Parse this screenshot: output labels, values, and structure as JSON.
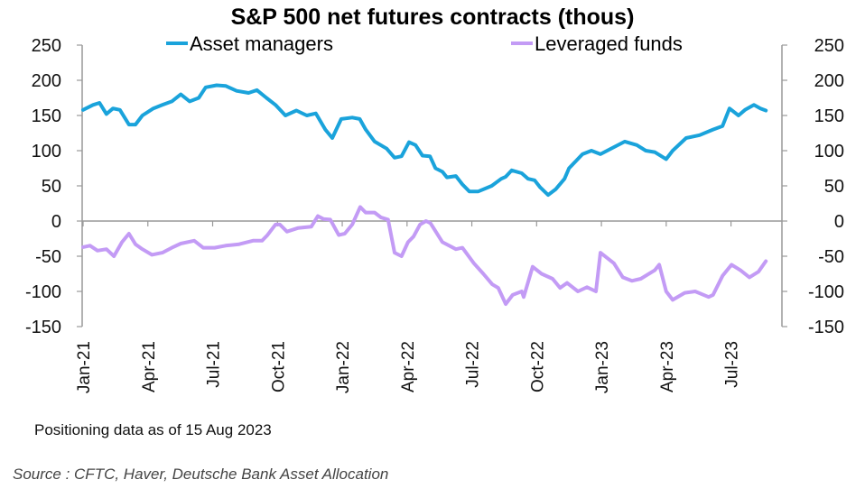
{
  "chart_data": {
    "type": "line",
    "title": "S&P 500 net futures contracts  (thous)",
    "xlabel": "",
    "ylabel": "",
    "ylim": [
      -150,
      250
    ],
    "yticks": [
      250,
      200,
      150,
      100,
      50,
      0,
      -50,
      -100,
      -150
    ],
    "y2ticks": [
      250,
      200,
      150,
      100,
      50,
      0,
      -50,
      -100,
      -150
    ],
    "xlim_weeks": [
      0,
      140
    ],
    "x_unit": "weeks since 1 Jan 2021",
    "xticks": [
      {
        "label": "Jan-21",
        "week": 0
      },
      {
        "label": "Apr-21",
        "week": 13
      },
      {
        "label": "Jul-21",
        "week": 26
      },
      {
        "label": "Oct-21",
        "week": 39
      },
      {
        "label": "Jan-22",
        "week": 52
      },
      {
        "label": "Apr-22",
        "week": 65
      },
      {
        "label": "Jul-22",
        "week": 78
      },
      {
        "label": "Oct-22",
        "week": 91
      },
      {
        "label": "Jan-23",
        "week": 104
      },
      {
        "label": "Apr-23",
        "week": 117
      },
      {
        "label": "Jul-23",
        "week": 130
      }
    ],
    "grid": false,
    "legend_position": "top",
    "series": [
      {
        "name": "Asset managers",
        "color": "#1aa3db",
        "points": [
          [
            0,
            158
          ],
          [
            2,
            165
          ],
          [
            3.3,
            168
          ],
          [
            4.7,
            152
          ],
          [
            6,
            160
          ],
          [
            7.4,
            158
          ],
          [
            9.2,
            137
          ],
          [
            10.5,
            137
          ],
          [
            11.9,
            150
          ],
          [
            14.1,
            160
          ],
          [
            15.9,
            165
          ],
          [
            17.8,
            170
          ],
          [
            19.6,
            180
          ],
          [
            21.4,
            170
          ],
          [
            23.2,
            175
          ],
          [
            24.6,
            190
          ],
          [
            26.8,
            193
          ],
          [
            28.6,
            192
          ],
          [
            30.8,
            185
          ],
          [
            33.2,
            182
          ],
          [
            34.9,
            186
          ],
          [
            36.8,
            175
          ],
          [
            38.6,
            165
          ],
          [
            40.6,
            150
          ],
          [
            42.8,
            157
          ],
          [
            44.9,
            150
          ],
          [
            46.7,
            153
          ],
          [
            48.6,
            130
          ],
          [
            50,
            118
          ],
          [
            51.8,
            145
          ],
          [
            54,
            147
          ],
          [
            55.5,
            145
          ],
          [
            56.7,
            130
          ],
          [
            58.5,
            113
          ],
          [
            60.9,
            103
          ],
          [
            62.5,
            90
          ],
          [
            63.9,
            92
          ],
          [
            65.4,
            112
          ],
          [
            66.7,
            108
          ],
          [
            68.1,
            93
          ],
          [
            69.6,
            92
          ],
          [
            70.7,
            75
          ],
          [
            72.1,
            70
          ],
          [
            73,
            62
          ],
          [
            74.8,
            64
          ],
          [
            76.1,
            52
          ],
          [
            77.5,
            42
          ],
          [
            79.3,
            42
          ],
          [
            82,
            50
          ],
          [
            83.9,
            60
          ],
          [
            84.8,
            63
          ],
          [
            86,
            72
          ],
          [
            88,
            68
          ],
          [
            89.3,
            60
          ],
          [
            90.6,
            58
          ],
          [
            91.7,
            48
          ],
          [
            93.3,
            37
          ],
          [
            94.8,
            45
          ],
          [
            96.6,
            60
          ],
          [
            97.5,
            75
          ],
          [
            100.2,
            95
          ],
          [
            102,
            100
          ],
          [
            103.8,
            95
          ],
          [
            106.5,
            105
          ],
          [
            108.7,
            113
          ],
          [
            111.1,
            108
          ],
          [
            112.9,
            100
          ],
          [
            114.7,
            98
          ],
          [
            117,
            88
          ],
          [
            118.3,
            100
          ],
          [
            121,
            118
          ],
          [
            123.7,
            122
          ],
          [
            126.4,
            130
          ],
          [
            128.3,
            135
          ],
          [
            129.7,
            160
          ],
          [
            131.5,
            150
          ],
          [
            132.8,
            158
          ],
          [
            134.6,
            165
          ],
          [
            135.9,
            160
          ],
          [
            137,
            157
          ]
        ]
      },
      {
        "name": "Leveraged funds",
        "color": "#c39bf5",
        "points": [
          [
            0,
            -37
          ],
          [
            1.4,
            -35
          ],
          [
            2.9,
            -42
          ],
          [
            4.7,
            -40
          ],
          [
            6.2,
            -50
          ],
          [
            7.8,
            -30
          ],
          [
            9.2,
            -18
          ],
          [
            10.5,
            -33
          ],
          [
            11.9,
            -40
          ],
          [
            13.8,
            -48
          ],
          [
            15.9,
            -45
          ],
          [
            17.8,
            -38
          ],
          [
            19.6,
            -32
          ],
          [
            22.3,
            -28
          ],
          [
            24.1,
            -38
          ],
          [
            26.4,
            -38
          ],
          [
            28.6,
            -35
          ],
          [
            31.3,
            -33
          ],
          [
            34.1,
            -28
          ],
          [
            35.9,
            -28
          ],
          [
            37,
            -20
          ],
          [
            38.6,
            -5
          ],
          [
            39.5,
            -5
          ],
          [
            40.9,
            -15
          ],
          [
            43.1,
            -10
          ],
          [
            45.8,
            -8
          ],
          [
            47.1,
            7
          ],
          [
            48.2,
            3
          ],
          [
            49.6,
            2
          ],
          [
            51.3,
            -20
          ],
          [
            52.5,
            -18
          ],
          [
            54,
            -5
          ],
          [
            55.6,
            20
          ],
          [
            56.7,
            12
          ],
          [
            58.5,
            12
          ],
          [
            59.8,
            5
          ],
          [
            61.2,
            2
          ],
          [
            62.5,
            -45
          ],
          [
            63.9,
            -50
          ],
          [
            65.2,
            -30
          ],
          [
            66.3,
            -22
          ],
          [
            67.6,
            -5
          ],
          [
            68.8,
            0
          ],
          [
            69.7,
            -3
          ],
          [
            72.1,
            -30
          ],
          [
            74.8,
            -40
          ],
          [
            76.1,
            -38
          ],
          [
            78.4,
            -60
          ],
          [
            80.3,
            -75
          ],
          [
            82.1,
            -90
          ],
          [
            83.3,
            -95
          ],
          [
            84.8,
            -118
          ],
          [
            86.2,
            -105
          ],
          [
            88,
            -100
          ],
          [
            88.4,
            -108
          ],
          [
            90.2,
            -65
          ],
          [
            92,
            -75
          ],
          [
            94.2,
            -82
          ],
          [
            95.7,
            -95
          ],
          [
            97.1,
            -88
          ],
          [
            99.3,
            -100
          ],
          [
            101.1,
            -94
          ],
          [
            102.9,
            -100
          ],
          [
            103.8,
            -45
          ],
          [
            106.5,
            -60
          ],
          [
            108.3,
            -80
          ],
          [
            110.1,
            -85
          ],
          [
            111.9,
            -82
          ],
          [
            114.7,
            -70
          ],
          [
            115.6,
            -62
          ],
          [
            117,
            -100
          ],
          [
            118.3,
            -112
          ],
          [
            120.7,
            -102
          ],
          [
            122.8,
            -100
          ],
          [
            125.5,
            -108
          ],
          [
            126.4,
            -105
          ],
          [
            128.3,
            -78
          ],
          [
            130.1,
            -62
          ],
          [
            131.9,
            -70
          ],
          [
            133.7,
            -80
          ],
          [
            135.5,
            -72
          ],
          [
            137,
            -57
          ]
        ]
      }
    ]
  },
  "footnote": "Positioning data as of 15 Aug 2023",
  "source": "Source : CFTC, Haver, Deutsche Bank Asset Allocation"
}
